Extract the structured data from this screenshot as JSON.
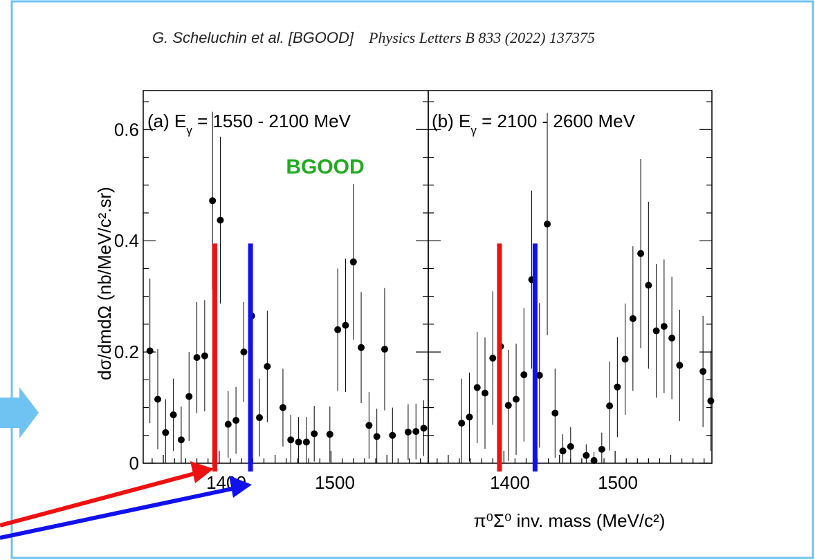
{
  "citation": {
    "authors": "G. Scheluchin et al. [BGOOD]",
    "journal": "Physics Letters B 833 (2022) 137375"
  },
  "figure": {
    "ylabel": "dσ/dmdΩ (nb/MeV/c².sr)",
    "xlabel": "π⁰Σ⁰ inv. mass (MeV/c²)",
    "experiment_label": "BGOOD",
    "colors": {
      "red_marker": "#ee1111",
      "blue_marker": "#1111ee",
      "bgood_label": "#22aa22",
      "frame": "#6ec3f2",
      "arrow_side": "#6ec3f2"
    }
  },
  "chart_data": [
    {
      "type": "scatter",
      "panel": "(a)",
      "title": "(a) E",
      "title_sub": "γ",
      "title_rest": " = 1550 - 2100 MeV",
      "xlim": [
        1332,
        1587
      ],
      "ylim": [
        0,
        0.67
      ],
      "xticks": [
        1400,
        1500
      ],
      "yticks": [
        0,
        0.2,
        0.4,
        0.6
      ],
      "ytick_labels": [
        "0",
        "0.2",
        "0.4",
        "0.6"
      ],
      "markers": [
        {
          "name": "red",
          "x": 1396,
          "ymax": 0.395
        },
        {
          "name": "blue",
          "x": 1428,
          "ymax": 0.395
        }
      ],
      "points": [
        {
          "x": 1338,
          "y": 0.202,
          "err": 0.13
        },
        {
          "x": 1345,
          "y": 0.115,
          "err": 0.09
        },
        {
          "x": 1352,
          "y": 0.055,
          "err": 0.06
        },
        {
          "x": 1359,
          "y": 0.087,
          "err": 0.065
        },
        {
          "x": 1366,
          "y": 0.042,
          "err": 0.06
        },
        {
          "x": 1373,
          "y": 0.12,
          "err": 0.08
        },
        {
          "x": 1380,
          "y": 0.19,
          "err": 0.1
        },
        {
          "x": 1387,
          "y": 0.193,
          "err": 0.1
        },
        {
          "x": 1394,
          "y": 0.472,
          "err": 0.16
        },
        {
          "x": 1401,
          "y": 0.437,
          "err": 0.15
        },
        {
          "x": 1408,
          "y": 0.07,
          "err": 0.06
        },
        {
          "x": 1415,
          "y": 0.077,
          "err": 0.06
        },
        {
          "x": 1422,
          "y": 0.2,
          "err": 0.09
        },
        {
          "x": 1429,
          "y": 0.265,
          "err": 0.12
        },
        {
          "x": 1436,
          "y": 0.082,
          "err": 0.07
        },
        {
          "x": 1443,
          "y": 0.174,
          "err": 0.1
        },
        {
          "x": 1457,
          "y": 0.1,
          "err": 0.07
        },
        {
          "x": 1464,
          "y": 0.042,
          "err": 0.045
        },
        {
          "x": 1471,
          "y": 0.038,
          "err": 0.045
        },
        {
          "x": 1478,
          "y": 0.038,
          "err": 0.045
        },
        {
          "x": 1485,
          "y": 0.053,
          "err": 0.05
        },
        {
          "x": 1499,
          "y": 0.052,
          "err": 0.05
        },
        {
          "x": 1506,
          "y": 0.24,
          "err": 0.11
        },
        {
          "x": 1513,
          "y": 0.248,
          "err": 0.12
        },
        {
          "x": 1520,
          "y": 0.362,
          "err": 0.14
        },
        {
          "x": 1527,
          "y": 0.208,
          "err": 0.1
        },
        {
          "x": 1534,
          "y": 0.068,
          "err": 0.06
        },
        {
          "x": 1541,
          "y": 0.048,
          "err": 0.05
        },
        {
          "x": 1548,
          "y": 0.205,
          "err": 0.11
        },
        {
          "x": 1555,
          "y": 0.05,
          "err": 0.05
        },
        {
          "x": 1569,
          "y": 0.056,
          "err": 0.05
        },
        {
          "x": 1576,
          "y": 0.057,
          "err": 0.05
        },
        {
          "x": 1583,
          "y": 0.063,
          "err": 0.05
        }
      ]
    },
    {
      "type": "scatter",
      "panel": "(b)",
      "title": "(b) E",
      "title_sub": "γ",
      "title_rest": " = 2100 - 2600 MeV",
      "xlim": [
        1332,
        1587
      ],
      "ylim": [
        0,
        0.67
      ],
      "xticks": [
        1400,
        1500
      ],
      "xtick_labels": [
        "1400",
        "1500"
      ],
      "markers": [
        {
          "name": "red",
          "x": 1396,
          "ymax": 0.395
        },
        {
          "name": "blue",
          "x": 1428,
          "ymax": 0.395
        }
      ],
      "points": [
        {
          "x": 1362,
          "y": 0.072,
          "err": 0.08
        },
        {
          "x": 1369,
          "y": 0.083,
          "err": 0.08
        },
        {
          "x": 1376,
          "y": 0.136,
          "err": 0.1
        },
        {
          "x": 1383,
          "y": 0.126,
          "err": 0.1
        },
        {
          "x": 1390,
          "y": 0.189,
          "err": 0.12
        },
        {
          "x": 1397,
          "y": 0.21,
          "err": 0.13
        },
        {
          "x": 1404,
          "y": 0.104,
          "err": 0.1
        },
        {
          "x": 1411,
          "y": 0.115,
          "err": 0.1
        },
        {
          "x": 1418,
          "y": 0.159,
          "err": 0.12
        },
        {
          "x": 1425,
          "y": 0.33,
          "err": 0.16
        },
        {
          "x": 1432,
          "y": 0.158,
          "err": 0.13
        },
        {
          "x": 1439,
          "y": 0.43,
          "err": 0.2
        },
        {
          "x": 1446,
          "y": 0.09,
          "err": 0.08
        },
        {
          "x": 1453,
          "y": 0.022,
          "err": 0.03
        },
        {
          "x": 1460,
          "y": 0.03,
          "err": 0.035
        },
        {
          "x": 1474,
          "y": 0.014,
          "err": 0.02
        },
        {
          "x": 1481,
          "y": 0.005,
          "err": 0.015
        },
        {
          "x": 1488,
          "y": 0.025,
          "err": 0.03
        },
        {
          "x": 1495,
          "y": 0.103,
          "err": 0.08
        },
        {
          "x": 1502,
          "y": 0.137,
          "err": 0.09
        },
        {
          "x": 1509,
          "y": 0.187,
          "err": 0.1
        },
        {
          "x": 1516,
          "y": 0.26,
          "err": 0.13
        },
        {
          "x": 1523,
          "y": 0.377,
          "err": 0.17
        },
        {
          "x": 1530,
          "y": 0.32,
          "err": 0.15
        },
        {
          "x": 1537,
          "y": 0.238,
          "err": 0.12
        },
        {
          "x": 1544,
          "y": 0.246,
          "err": 0.12
        },
        {
          "x": 1551,
          "y": 0.225,
          "err": 0.11
        },
        {
          "x": 1558,
          "y": 0.176,
          "err": 0.1
        },
        {
          "x": 1579,
          "y": 0.165,
          "err": 0.1
        },
        {
          "x": 1586,
          "y": 0.112,
          "err": 0.09
        }
      ]
    }
  ],
  "xtick_labels_a": [
    "1400",
    "1500"
  ]
}
